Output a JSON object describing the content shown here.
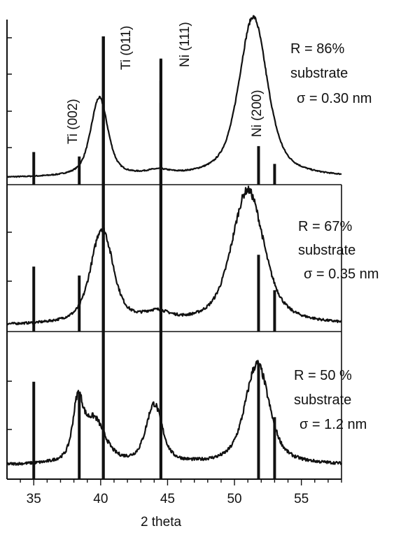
{
  "chart_data": {
    "type": "line",
    "xlabel": "2 theta",
    "ylabel": "",
    "xlim": [
      33,
      58
    ],
    "xticks": [
      "35",
      "40",
      "45",
      "50",
      "55"
    ],
    "xtick_values": [
      35,
      40,
      45,
      50,
      55
    ],
    "grid": false,
    "reference_lines": [
      {
        "x": 35.0,
        "rel": 0.22,
        "label": ""
      },
      {
        "x": 38.4,
        "rel": 0.19,
        "label": "Ti (002)"
      },
      {
        "x": 40.2,
        "rel": 1.0,
        "label": "Ti (011)"
      },
      {
        "x": 44.5,
        "rel": 0.85,
        "label": "Ni (111)"
      },
      {
        "x": 51.8,
        "rel": 0.26,
        "label": "Ni (200)"
      },
      {
        "x": 53.0,
        "rel": 0.14,
        "label": ""
      }
    ],
    "panels": [
      {
        "annotation": [
          "R = 86%",
          "substrate",
          "σ = 0.30 nm"
        ],
        "peaks": [
          {
            "x": 39.9,
            "height": 0.52,
            "width": 0.85
          },
          {
            "x": 44.3,
            "height": 0.03,
            "width": 1.2
          },
          {
            "x": 51.4,
            "height": 1.06,
            "width": 1.4
          }
        ],
        "baseline": 0.03,
        "noise": 0.006
      },
      {
        "annotation": [
          "R = 67%",
          "substrate",
          "σ = 0.35 nm"
        ],
        "peaks": [
          {
            "x": 40.1,
            "height": 0.75,
            "width": 1.1
          },
          {
            "x": 44.2,
            "height": 0.07,
            "width": 1.3
          },
          {
            "x": 51.0,
            "height": 1.06,
            "width": 1.6
          }
        ],
        "baseline": 0.03,
        "noise": 0.015
      },
      {
        "annotation": [
          "R = 50 %",
          "substrate",
          "σ = 1.2 nm"
        ],
        "peaks": [
          {
            "x": 38.3,
            "height": 0.56,
            "width": 0.5
          },
          {
            "x": 39.5,
            "height": 0.44,
            "width": 1.1
          },
          {
            "x": 44.0,
            "height": 0.6,
            "width": 0.8
          },
          {
            "x": 51.7,
            "height": 1.03,
            "width": 1.2
          }
        ],
        "baseline": 0.12,
        "noise": 0.02
      }
    ]
  }
}
